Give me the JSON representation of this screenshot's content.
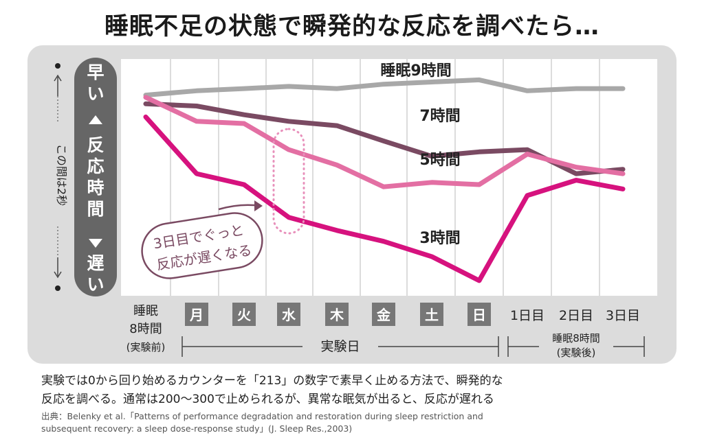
{
  "title": "睡眠不足の状態で瞬発的な反応を調べたら…",
  "chart_data": {
    "type": "line",
    "categories": [
      "睡眠8時間(実験前)",
      "月",
      "火",
      "水",
      "木",
      "金",
      "土",
      "日",
      "1日目",
      "2日目",
      "3日目"
    ],
    "series": [
      {
        "name": "睡眠9時間",
        "color": "#a8a8a8",
        "values": [
          0.91,
          0.93,
          0.94,
          0.95,
          0.94,
          0.96,
          0.97,
          0.98,
          0.93,
          0.94,
          0.94
        ]
      },
      {
        "name": "7時間",
        "color": "#7a4a62",
        "values": [
          0.87,
          0.86,
          0.82,
          0.79,
          0.77,
          0.7,
          0.63,
          0.65,
          0.66,
          0.55,
          0.57
        ]
      },
      {
        "name": "5時間",
        "color": "#e36fa3",
        "values": [
          0.9,
          0.79,
          0.78,
          0.66,
          0.59,
          0.49,
          0.51,
          0.5,
          0.64,
          0.58,
          0.55
        ]
      },
      {
        "name": "3時間",
        "color": "#d6127e",
        "values": [
          0.81,
          0.55,
          0.5,
          0.35,
          0.29,
          0.24,
          0.17,
          0.06,
          0.45,
          0.52,
          0.48
        ]
      }
    ],
    "yaxis": {
      "top_label": "早い",
      "middle_label": "反応時間",
      "bottom_label": "遅い",
      "range_label": "この間は2秒"
    },
    "x_groups": {
      "baseline": [
        "睡眠",
        "8時間",
        "(実験前)"
      ],
      "experiment": "実験日",
      "recovery": [
        "睡眠8時間",
        "(実験後)"
      ]
    },
    "annotation": [
      "3日目でぐっと",
      "反応が遅くなる"
    ],
    "grid": true
  },
  "footnote": [
    "実験では0から回り始めるカウンターを「213」の数字で素早く止める方法で、瞬発的な",
    "反応を調べる。通常は200～300で止められるが、異常な眠気が出ると、反応が遅れる"
  ],
  "source": [
    "出典：Belenky et al.「Patterns of performance degradation and restoration during sleep restriction and",
    "subsequent recovery: a sleep dose-response study」(J. Sleep Res.,2003)"
  ]
}
